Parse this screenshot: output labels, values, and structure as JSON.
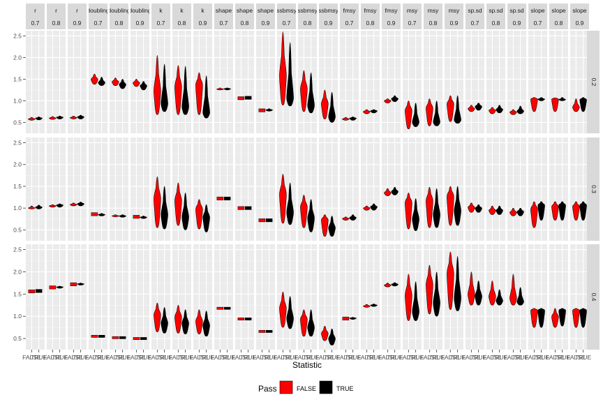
{
  "chart_data": {
    "type": "violin",
    "xlabel": "Statistic",
    "ylabel": "",
    "ylim": [
      0.25,
      2.62
    ],
    "y_ticks": [
      0.5,
      1.0,
      1.5,
      2.0,
      2.5
    ],
    "y_tick_labels": [
      "0.5",
      "1.0",
      "1.5",
      "2.0",
      "2.5"
    ],
    "x_categories": [
      "FALSE",
      "TRUE"
    ],
    "strip_top_labels": [
      "r",
      "r",
      "r",
      "doubling",
      "doubling",
      "doubling",
      "k",
      "k",
      "k",
      "shape",
      "shape",
      "shape",
      "ssbmsy",
      "ssbmsy",
      "ssbmsy",
      "fmsy",
      "fmsy",
      "fmsy",
      "msy",
      "msy",
      "msy",
      "sp.sd",
      "sp.sd",
      "sp.sd",
      "slope",
      "slope",
      "slope"
    ],
    "strip_top_sub": [
      "0.7",
      "0.8",
      "0.9",
      "0.7",
      "0.8",
      "0.9",
      "0.7",
      "0.8",
      "0.9",
      "0.7",
      "0.8",
      "0.9",
      "0.7",
      "0.8",
      "0.9",
      "0.7",
      "0.8",
      "0.9",
      "0.7",
      "0.8",
      "0.9",
      "0.7",
      "0.8",
      "0.9",
      "0.7",
      "0.8",
      "0.9"
    ],
    "strip_right_labels": [
      "0.2",
      "0.3",
      "0.4"
    ],
    "legend": {
      "title": "Pass",
      "position": "bottom",
      "entries": [
        {
          "label": "FALSE",
          "color": "#ff0000"
        },
        {
          "label": "TRUE",
          "color": "#000000"
        }
      ]
    },
    "violins": [
      [
        {
          "f": [
            0.55,
            0.58,
            0.62
          ],
          "t": [
            0.56,
            0.6,
            0.63
          ]
        },
        {
          "f": [
            0.57,
            0.6,
            0.64
          ],
          "t": [
            0.58,
            0.62,
            0.65
          ]
        },
        {
          "f": [
            0.58,
            0.61,
            0.65
          ],
          "t": [
            0.58,
            0.63,
            0.67
          ]
        },
        {
          "f": [
            1.38,
            1.5,
            1.62
          ],
          "t": [
            1.35,
            1.42,
            1.55
          ]
        },
        {
          "f": [
            1.35,
            1.44,
            1.53
          ],
          "t": [
            1.28,
            1.38,
            1.5
          ]
        },
        {
          "f": [
            1.33,
            1.42,
            1.5
          ],
          "t": [
            1.25,
            1.35,
            1.45
          ]
        },
        {
          "f": [
            0.68,
            1.25,
            2.05
          ],
          "t": [
            0.75,
            0.92,
            1.85
          ]
        },
        {
          "f": [
            0.68,
            1.35,
            1.82
          ],
          "t": [
            0.68,
            0.85,
            1.8
          ]
        },
        {
          "f": [
            0.68,
            1.4,
            1.65
          ],
          "t": [
            0.6,
            0.72,
            1.58
          ]
        },
        {
          "f": [
            1.25,
            1.27,
            1.3
          ],
          "t": [
            1.25,
            1.28,
            1.3
          ]
        },
        {
          "f": [
            1.04,
            1.06,
            1.08
          ],
          "t": [
            1.05,
            1.07,
            1.09
          ]
        },
        {
          "f": [
            0.76,
            0.78,
            0.8
          ],
          "t": [
            0.76,
            0.79,
            0.82
          ]
        },
        {
          "f": [
            0.9,
            1.6,
            2.6
          ],
          "t": [
            0.88,
            1.05,
            2.35
          ]
        },
        {
          "f": [
            0.75,
            1.3,
            1.7
          ],
          "t": [
            0.72,
            0.88,
            1.65
          ]
        },
        {
          "f": [
            0.58,
            0.95,
            1.25
          ],
          "t": [
            0.5,
            0.62,
            1.2
          ]
        },
        {
          "f": [
            0.55,
            0.58,
            0.62
          ],
          "t": [
            0.55,
            0.6,
            0.63
          ]
        },
        {
          "f": [
            0.7,
            0.75,
            0.8
          ],
          "t": [
            0.72,
            0.77,
            0.8
          ]
        },
        {
          "f": [
            0.95,
            1.0,
            1.05
          ],
          "t": [
            0.98,
            1.05,
            1.12
          ]
        },
        {
          "f": [
            0.35,
            0.8,
            1.0
          ],
          "t": [
            0.4,
            0.5,
            0.95
          ]
        },
        {
          "f": [
            0.42,
            0.85,
            1.05
          ],
          "t": [
            0.42,
            0.5,
            1.0
          ]
        },
        {
          "f": [
            0.52,
            0.95,
            1.12
          ],
          "t": [
            0.48,
            0.55,
            1.12
          ]
        },
        {
          "f": [
            0.75,
            0.82,
            0.9
          ],
          "t": [
            0.78,
            0.87,
            0.95
          ]
        },
        {
          "f": [
            0.7,
            0.78,
            0.85
          ],
          "t": [
            0.72,
            0.8,
            0.9
          ]
        },
        {
          "f": [
            0.68,
            0.74,
            0.8
          ],
          "t": [
            0.7,
            0.76,
            0.88
          ]
        },
        {
          "f": [
            0.75,
            1.05,
            1.08
          ],
          "t": [
            1.0,
            1.04,
            1.08
          ]
        },
        {
          "f": [
            0.75,
            1.05,
            1.07
          ],
          "t": [
            1.0,
            1.03,
            1.08
          ]
        },
        {
          "f": [
            0.75,
            0.85,
            1.05
          ],
          "t": [
            0.75,
            1.04,
            1.08
          ]
        }
      ],
      [
        {
          "f": [
            0.98,
            1.0,
            1.05
          ],
          "t": [
            0.98,
            1.02,
            1.07
          ]
        },
        {
          "f": [
            1.02,
            1.05,
            1.08
          ],
          "t": [
            1.02,
            1.07,
            1.1
          ]
        },
        {
          "f": [
            1.05,
            1.08,
            1.12
          ],
          "t": [
            1.05,
            1.1,
            1.14
          ]
        },
        {
          "f": [
            0.84,
            0.86,
            0.88
          ],
          "t": [
            0.82,
            0.85,
            0.88
          ]
        },
        {
          "f": [
            0.8,
            0.82,
            0.85
          ],
          "t": [
            0.79,
            0.82,
            0.85
          ]
        },
        {
          "f": [
            0.78,
            0.8,
            0.82
          ],
          "t": [
            0.76,
            0.79,
            0.82
          ]
        },
        {
          "f": [
            0.55,
            1.25,
            1.72
          ],
          "t": [
            0.52,
            0.85,
            1.5
          ]
        },
        {
          "f": [
            0.6,
            1.2,
            1.58
          ],
          "t": [
            0.5,
            0.8,
            1.35
          ]
        },
        {
          "f": [
            0.52,
            1.0,
            1.2
          ],
          "t": [
            0.45,
            0.8,
            1.08
          ]
        },
        {
          "f": [
            1.2,
            1.22,
            1.24
          ],
          "t": [
            1.2,
            1.22,
            1.24
          ]
        },
        {
          "f": [
            0.98,
            1.0,
            1.02
          ],
          "t": [
            0.98,
            1.0,
            1.02
          ]
        },
        {
          "f": [
            0.7,
            0.72,
            0.74
          ],
          "t": [
            0.7,
            0.72,
            0.74
          ]
        },
        {
          "f": [
            0.65,
            1.35,
            1.78
          ],
          "t": [
            0.62,
            0.9,
            1.58
          ]
        },
        {
          "f": [
            0.55,
            1.05,
            1.3
          ],
          "t": [
            0.45,
            0.78,
            1.2
          ]
        },
        {
          "f": [
            0.35,
            0.75,
            0.85
          ],
          "t": [
            0.35,
            0.55,
            0.82
          ]
        },
        {
          "f": [
            0.72,
            0.76,
            0.8
          ],
          "t": [
            0.72,
            0.78,
            0.85
          ]
        },
        {
          "f": [
            0.95,
            1.0,
            1.05
          ],
          "t": [
            0.95,
            1.03,
            1.1
          ]
        },
        {
          "f": [
            1.28,
            1.35,
            1.45
          ],
          "t": [
            1.3,
            1.38,
            1.48
          ]
        },
        {
          "f": [
            0.52,
            1.15,
            1.35
          ],
          "t": [
            0.48,
            0.75,
            1.22
          ]
        },
        {
          "f": [
            0.55,
            1.2,
            1.48
          ],
          "t": [
            0.55,
            0.85,
            1.45
          ]
        },
        {
          "f": [
            0.6,
            1.3,
            1.5
          ],
          "t": [
            0.6,
            0.95,
            1.5
          ]
        },
        {
          "f": [
            0.9,
            1.02,
            1.12
          ],
          "t": [
            0.9,
            1.0,
            1.08
          ]
        },
        {
          "f": [
            0.85,
            0.95,
            1.05
          ],
          "t": [
            0.85,
            0.95,
            1.05
          ]
        },
        {
          "f": [
            0.82,
            0.9,
            1.0
          ],
          "t": [
            0.82,
            0.92,
            1.0
          ]
        },
        {
          "f": [
            0.55,
            1.0,
            1.15
          ],
          "t": [
            0.72,
            1.08,
            1.15
          ]
        },
        {
          "f": [
            0.72,
            1.05,
            1.15
          ],
          "t": [
            0.72,
            1.08,
            1.15
          ]
        },
        {
          "f": [
            0.72,
            1.05,
            1.15
          ],
          "t": [
            0.72,
            1.08,
            1.15
          ]
        }
      ],
      [
        {
          "f": [
            1.54,
            1.56,
            1.58
          ],
          "t": [
            1.55,
            1.57,
            1.59
          ]
        },
        {
          "f": [
            1.63,
            1.65,
            1.67
          ],
          "t": [
            1.63,
            1.66,
            1.68
          ]
        },
        {
          "f": [
            1.7,
            1.72,
            1.74
          ],
          "t": [
            1.7,
            1.73,
            1.75
          ]
        },
        {
          "f": [
            0.54,
            0.55,
            0.56
          ],
          "t": [
            0.54,
            0.55,
            0.56
          ]
        },
        {
          "f": [
            0.51,
            0.52,
            0.53
          ],
          "t": [
            0.51,
            0.52,
            0.53
          ]
        },
        {
          "f": [
            0.49,
            0.5,
            0.51
          ],
          "t": [
            0.49,
            0.5,
            0.51
          ]
        },
        {
          "f": [
            0.65,
            1.05,
            1.3
          ],
          "t": [
            0.62,
            0.85,
            1.2
          ]
        },
        {
          "f": [
            0.62,
            1.0,
            1.25
          ],
          "t": [
            0.6,
            0.85,
            1.15
          ]
        },
        {
          "f": [
            0.6,
            0.9,
            1.15
          ],
          "t": [
            0.55,
            0.8,
            1.12
          ]
        },
        {
          "f": [
            1.17,
            1.18,
            1.19
          ],
          "t": [
            1.17,
            1.18,
            1.19
          ]
        },
        {
          "f": [
            0.93,
            0.94,
            0.95
          ],
          "t": [
            0.93,
            0.94,
            0.95
          ]
        },
        {
          "f": [
            0.65,
            0.66,
            0.67
          ],
          "t": [
            0.65,
            0.66,
            0.67
          ]
        },
        {
          "f": [
            0.75,
            1.2,
            1.55
          ],
          "t": [
            0.72,
            0.95,
            1.45
          ]
        },
        {
          "f": [
            0.55,
            0.95,
            1.15
          ],
          "t": [
            0.55,
            0.75,
            1.15
          ]
        },
        {
          "f": [
            0.45,
            0.62,
            0.78
          ],
          "t": [
            0.35,
            0.5,
            0.72
          ]
        },
        {
          "f": [
            0.93,
            0.95,
            0.97
          ],
          "t": [
            0.93,
            0.96,
            0.98
          ]
        },
        {
          "f": [
            1.2,
            1.23,
            1.27
          ],
          "t": [
            1.22,
            1.25,
            1.28
          ]
        },
        {
          "f": [
            1.66,
            1.7,
            1.75
          ],
          "t": [
            1.68,
            1.72,
            1.76
          ]
        },
        {
          "f": [
            0.9,
            1.5,
            1.95
          ],
          "t": [
            0.9,
            1.1,
            1.78
          ]
        },
        {
          "f": [
            1.05,
            1.75,
            2.15
          ],
          "t": [
            1.0,
            1.3,
            2.0
          ]
        },
        {
          "f": [
            1.15,
            2.0,
            2.45
          ],
          "t": [
            1.12,
            1.4,
            2.35
          ]
        },
        {
          "f": [
            1.25,
            1.5,
            2.0
          ],
          "t": [
            1.25,
            1.45,
            1.8
          ]
        },
        {
          "f": [
            1.25,
            1.45,
            1.8
          ],
          "t": [
            1.25,
            1.35,
            1.6
          ]
        },
        {
          "f": [
            1.25,
            1.4,
            1.95
          ],
          "t": [
            1.25,
            1.32,
            1.65
          ]
        },
        {
          "f": [
            0.75,
            1.15,
            1.18
          ],
          "t": [
            0.75,
            1.15,
            1.18
          ]
        },
        {
          "f": [
            0.75,
            1.0,
            1.18
          ],
          "t": [
            0.78,
            1.15,
            1.18
          ]
        },
        {
          "f": [
            0.75,
            1.15,
            1.18
          ],
          "t": [
            0.75,
            1.15,
            1.18
          ]
        }
      ]
    ]
  }
}
